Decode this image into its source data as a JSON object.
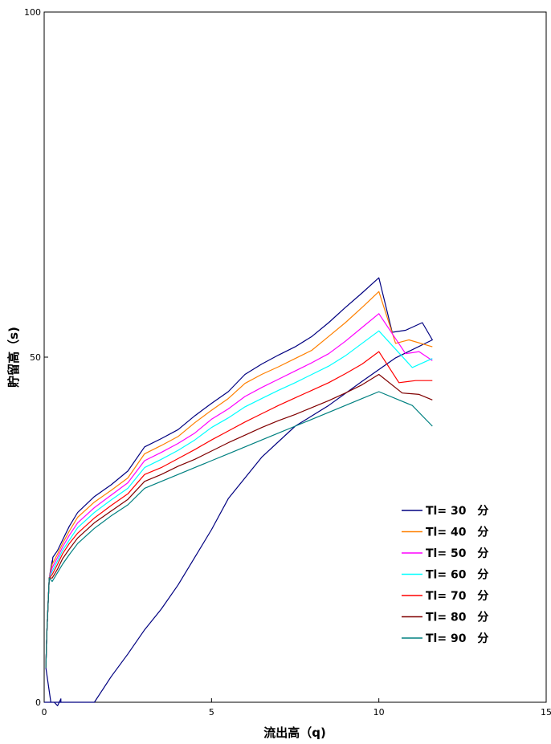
{
  "chart_data": {
    "type": "line",
    "xlabel": "流出高（q)",
    "ylabel": "貯留高（s)",
    "xlim": [
      0,
      15
    ],
    "ylim": [
      0,
      100
    ],
    "xticks": [
      "0",
      "5",
      "10",
      "15"
    ],
    "yticks": [
      "0",
      "50",
      "100"
    ],
    "grid": false,
    "legend_position": "lower-right",
    "series": [
      {
        "name": "Tl= 30　分",
        "color": "#000080",
        "points": [
          [
            0,
            0
          ],
          [
            0.2,
            0
          ],
          [
            0.3,
            0
          ],
          [
            0.5,
            0
          ],
          [
            0.5,
            0.5
          ],
          [
            0.4,
            -0.5
          ],
          [
            0.3,
            0
          ],
          [
            0.2,
            0
          ],
          [
            0.05,
            5
          ],
          [
            0.08,
            10
          ],
          [
            0.15,
            18
          ],
          [
            0.22,
            20
          ],
          [
            0.24,
            20.5
          ],
          [
            0.24,
            20
          ],
          [
            0.26,
            21
          ],
          [
            0.4,
            22
          ],
          [
            0.55,
            23.5
          ],
          [
            0.75,
            25.5
          ],
          [
            1.0,
            27.5
          ],
          [
            1.5,
            29.8
          ],
          [
            2.0,
            31.5
          ],
          [
            2.5,
            33.5
          ],
          [
            3.0,
            37
          ],
          [
            3.5,
            38.2
          ],
          [
            4.0,
            39.5
          ],
          [
            4.5,
            41.5
          ],
          [
            5.0,
            43.3
          ],
          [
            5.5,
            45
          ],
          [
            6.0,
            47.5
          ],
          [
            6.5,
            49
          ],
          [
            7.0,
            50.3
          ],
          [
            7.5,
            51.5
          ],
          [
            8.0,
            53
          ],
          [
            8.5,
            55
          ],
          [
            9.0,
            57.2
          ],
          [
            9.5,
            59.3
          ],
          [
            10.0,
            61.5
          ],
          [
            10.4,
            53.6
          ],
          [
            10.8,
            53.9
          ],
          [
            11.3,
            55
          ],
          [
            11.6,
            52.5
          ],
          [
            10.5,
            49.9
          ],
          [
            9.5,
            46.5
          ],
          [
            8.5,
            43
          ],
          [
            7.5,
            40
          ],
          [
            6.5,
            35.5
          ],
          [
            5.5,
            29.5
          ],
          [
            5.0,
            25
          ],
          [
            4.5,
            21
          ],
          [
            4.0,
            17
          ],
          [
            3.5,
            13.5
          ],
          [
            3.0,
            10.5
          ],
          [
            2.5,
            7
          ],
          [
            2.0,
            3.7
          ],
          [
            1.5,
            0
          ],
          [
            0.5,
            0
          ],
          [
            0.5,
            0
          ]
        ]
      },
      {
        "name": "Tl= 40　分",
        "color": "#FF8000",
        "points": [
          [
            0.05,
            5
          ],
          [
            0.08,
            10
          ],
          [
            0.15,
            18
          ],
          [
            0.24,
            20
          ],
          [
            0.4,
            21.5
          ],
          [
            0.55,
            23
          ],
          [
            0.75,
            24.8
          ],
          [
            1.0,
            26.8
          ],
          [
            1.5,
            29
          ],
          [
            2.0,
            30.7
          ],
          [
            2.5,
            32.5
          ],
          [
            3.0,
            36
          ],
          [
            3.5,
            37.2
          ],
          [
            4.0,
            38.5
          ],
          [
            4.5,
            40.5
          ],
          [
            5.0,
            42.3
          ],
          [
            5.5,
            44
          ],
          [
            6.0,
            46.2
          ],
          [
            6.5,
            47.5
          ],
          [
            7.0,
            48.6
          ],
          [
            7.5,
            49.8
          ],
          [
            8.0,
            51
          ],
          [
            8.5,
            53
          ],
          [
            9.0,
            55
          ],
          [
            9.5,
            57.2
          ],
          [
            10.0,
            59.5
          ],
          [
            10.5,
            52
          ],
          [
            10.9,
            52.5
          ],
          [
            11.6,
            51.5
          ]
        ]
      },
      {
        "name": "Tl= 50　分",
        "color": "#FF00FF",
        "points": [
          [
            0.05,
            5
          ],
          [
            0.08,
            10
          ],
          [
            0.15,
            18
          ],
          [
            0.24,
            19.5
          ],
          [
            0.4,
            21
          ],
          [
            0.55,
            22.5
          ],
          [
            0.75,
            24.2
          ],
          [
            1.0,
            26
          ],
          [
            1.5,
            28.2
          ],
          [
            2.0,
            30
          ],
          [
            2.5,
            31.8
          ],
          [
            3.0,
            35
          ],
          [
            3.5,
            36.2
          ],
          [
            4.0,
            37.5
          ],
          [
            4.5,
            39
          ],
          [
            5.0,
            41
          ],
          [
            5.5,
            42.5
          ],
          [
            6.0,
            44.3
          ],
          [
            6.5,
            45.6
          ],
          [
            7.0,
            46.8
          ],
          [
            7.5,
            48
          ],
          [
            8.0,
            49.2
          ],
          [
            8.5,
            50.5
          ],
          [
            9.0,
            52.3
          ],
          [
            9.5,
            54.3
          ],
          [
            10.0,
            56.3
          ],
          [
            10.8,
            50.5
          ],
          [
            11.2,
            50.8
          ],
          [
            11.6,
            49.5
          ]
        ]
      },
      {
        "name": "Tl= 60　分",
        "color": "#00FFFF",
        "points": [
          [
            0.05,
            5
          ],
          [
            0.08,
            10
          ],
          [
            0.15,
            18
          ],
          [
            0.24,
            19
          ],
          [
            0.4,
            20.5
          ],
          [
            0.55,
            22
          ],
          [
            0.75,
            23.5
          ],
          [
            1.0,
            25.3
          ],
          [
            1.5,
            27.5
          ],
          [
            2.0,
            29.3
          ],
          [
            2.5,
            31
          ],
          [
            3.0,
            34
          ],
          [
            3.5,
            35.2
          ],
          [
            4.0,
            36.5
          ],
          [
            4.5,
            38
          ],
          [
            5.0,
            39.8
          ],
          [
            5.5,
            41.2
          ],
          [
            6.0,
            42.8
          ],
          [
            6.5,
            44
          ],
          [
            7.0,
            45.2
          ],
          [
            7.5,
            46.3
          ],
          [
            8.0,
            47.5
          ],
          [
            8.5,
            48.7
          ],
          [
            9.0,
            50.2
          ],
          [
            9.5,
            52
          ],
          [
            10.0,
            53.8
          ],
          [
            11.0,
            48.5
          ],
          [
            11.6,
            49.8
          ]
        ]
      },
      {
        "name": "Tl= 70　分",
        "color": "#FF0000",
        "points": [
          [
            0.05,
            5
          ],
          [
            0.08,
            10
          ],
          [
            0.15,
            18
          ],
          [
            0.24,
            18.5
          ],
          [
            0.4,
            20
          ],
          [
            0.55,
            21.5
          ],
          [
            0.75,
            23
          ],
          [
            1.0,
            24.5
          ],
          [
            1.5,
            26.7
          ],
          [
            2.0,
            28.5
          ],
          [
            2.5,
            30.2
          ],
          [
            3.0,
            33
          ],
          [
            3.5,
            34
          ],
          [
            4.0,
            35.3
          ],
          [
            4.5,
            36.6
          ],
          [
            5.0,
            38
          ],
          [
            5.5,
            39.3
          ],
          [
            6.0,
            40.6
          ],
          [
            6.5,
            41.8
          ],
          [
            7.0,
            43
          ],
          [
            7.5,
            44.1
          ],
          [
            8.0,
            45.2
          ],
          [
            8.5,
            46.3
          ],
          [
            9.0,
            47.6
          ],
          [
            9.5,
            49
          ],
          [
            10.0,
            50.8
          ],
          [
            10.6,
            46.3
          ],
          [
            11.1,
            46.6
          ],
          [
            11.6,
            46.6
          ]
        ]
      },
      {
        "name": "Tl= 80　分",
        "color": "#800000",
        "points": [
          [
            0.05,
            5
          ],
          [
            0.08,
            10
          ],
          [
            0.15,
            18
          ],
          [
            0.24,
            18
          ],
          [
            0.4,
            19.3
          ],
          [
            0.55,
            20.8
          ],
          [
            0.75,
            22.2
          ],
          [
            1.0,
            23.8
          ],
          [
            1.5,
            26
          ],
          [
            2.0,
            27.7
          ],
          [
            2.5,
            29.4
          ],
          [
            3.0,
            32
          ],
          [
            3.5,
            33
          ],
          [
            4.0,
            34.2
          ],
          [
            4.5,
            35.2
          ],
          [
            5.0,
            36.4
          ],
          [
            5.5,
            37.6
          ],
          [
            6.0,
            38.7
          ],
          [
            6.5,
            39.8
          ],
          [
            7.0,
            40.8
          ],
          [
            7.5,
            41.7
          ],
          [
            8.0,
            42.7
          ],
          [
            8.5,
            43.7
          ],
          [
            9.0,
            44.8
          ],
          [
            9.5,
            46
          ],
          [
            10.0,
            47.5
          ],
          [
            10.7,
            44.8
          ],
          [
            11.2,
            44.6
          ],
          [
            11.6,
            43.8
          ]
        ]
      },
      {
        "name": "Tl= 90　分",
        "color": "#008080",
        "points": [
          [
            0.05,
            5
          ],
          [
            0.08,
            10
          ],
          [
            0.15,
            18
          ],
          [
            0.24,
            17.5
          ],
          [
            0.4,
            18.8
          ],
          [
            0.55,
            20
          ],
          [
            0.75,
            21.4
          ],
          [
            1.0,
            23
          ],
          [
            1.5,
            25.2
          ],
          [
            2.0,
            27
          ],
          [
            2.5,
            28.6
          ],
          [
            3.0,
            31
          ],
          [
            3.5,
            32
          ],
          [
            4.0,
            33
          ],
          [
            4.5,
            34
          ],
          [
            5.0,
            35
          ],
          [
            5.5,
            36
          ],
          [
            6.0,
            37
          ],
          [
            6.5,
            38
          ],
          [
            7.0,
            39
          ],
          [
            7.5,
            40
          ],
          [
            8.0,
            41
          ],
          [
            8.5,
            42
          ],
          [
            9.0,
            43
          ],
          [
            9.5,
            44
          ],
          [
            10.0,
            45
          ],
          [
            11.0,
            43
          ],
          [
            11.6,
            40
          ]
        ]
      }
    ]
  }
}
